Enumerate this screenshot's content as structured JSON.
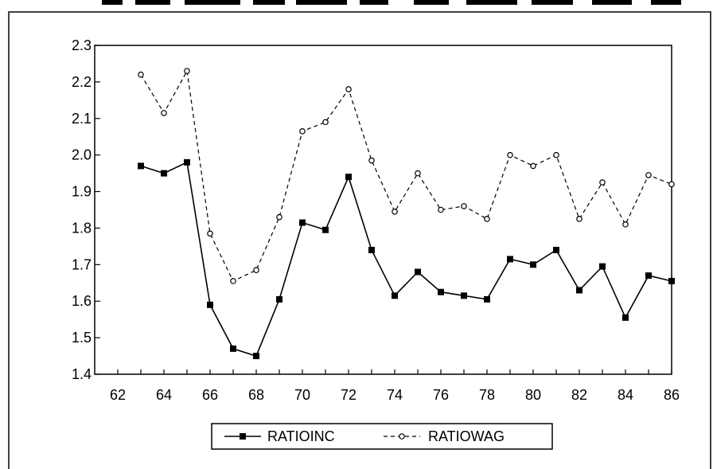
{
  "chart_data": {
    "type": "line",
    "title": "",
    "xlabel": "",
    "ylabel": "",
    "x": [
      63,
      64,
      65,
      66,
      67,
      68,
      69,
      70,
      71,
      72,
      73,
      74,
      75,
      76,
      77,
      78,
      79,
      80,
      81,
      82,
      83,
      84,
      85,
      86
    ],
    "xlim": [
      61,
      86
    ],
    "xticks": [
      "62",
      "64",
      "66",
      "68",
      "70",
      "72",
      "74",
      "76",
      "78",
      "80",
      "82",
      "84",
      "86"
    ],
    "ylim": [
      1.4,
      2.3
    ],
    "yticks": [
      "1.4",
      "1.5",
      "1.6",
      "1.7",
      "1.8",
      "1.9",
      "2.0",
      "2.1",
      "2.2",
      "2.3"
    ],
    "grid": false,
    "legend_position": "bottom-center",
    "series": [
      {
        "name": "RATIOINC",
        "marker": "filled-square",
        "line_style": "solid",
        "color": "#000000",
        "values": [
          1.97,
          1.95,
          1.98,
          1.59,
          1.47,
          1.45,
          1.605,
          1.815,
          1.795,
          1.94,
          1.74,
          1.615,
          1.68,
          1.625,
          1.615,
          1.605,
          1.715,
          1.7,
          1.74,
          1.63,
          1.695,
          1.555,
          1.67,
          1.655
        ]
      },
      {
        "name": "RATIOWAG",
        "marker": "open-circle",
        "line_style": "dashed",
        "color": "#000000",
        "values": [
          2.22,
          2.115,
          2.23,
          1.785,
          1.655,
          1.685,
          1.83,
          2.065,
          2.09,
          2.18,
          1.985,
          1.845,
          1.95,
          1.85,
          1.86,
          1.825,
          2.0,
          1.97,
          2.0,
          1.825,
          1.925,
          1.81,
          1.945,
          1.92
        ]
      }
    ]
  }
}
